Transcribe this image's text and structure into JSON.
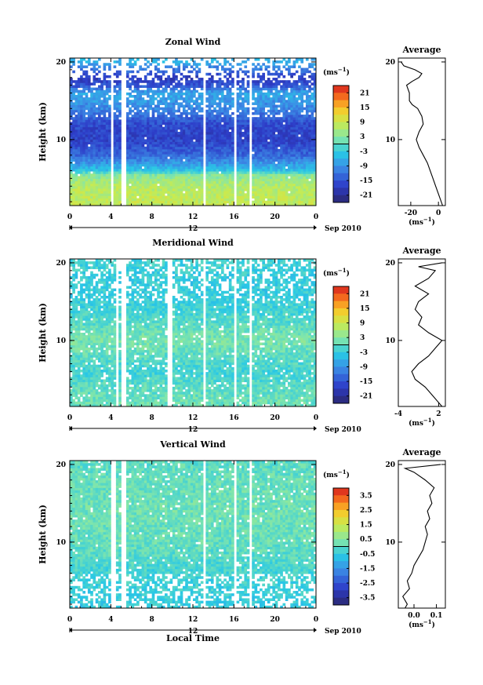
{
  "chart_data": [
    {
      "type": "heatmap",
      "title": "Zonal Wind",
      "ylabel": "Height (km)",
      "xlabel": "",
      "xlim": [
        0,
        24
      ],
      "ylim": [
        1.5,
        20.5
      ],
      "x_ticks": [
        "0",
        "4",
        "8",
        "12",
        "16",
        "20",
        "0"
      ],
      "y_ticks": [
        "10",
        "20"
      ],
      "date_marker": "12",
      "date_label": "Sep 2010",
      "colorbar": {
        "unit_base": "(ms",
        "unit_exp": "−1",
        "unit_close": ")",
        "ticks": [
          "21",
          "15",
          "9",
          "3",
          "-3",
          "-9",
          "-15",
          "-21"
        ],
        "range": [
          -24,
          24
        ]
      },
      "data_gaps_hours": [
        [
          4.0,
          4.3
        ],
        [
          4.9,
          5.5
        ],
        [
          12.9,
          13.3
        ],
        [
          16.0,
          16.3
        ],
        [
          17.4,
          17.7
        ]
      ],
      "profile_by_height": [
        {
          "h": 2,
          "v": 8
        },
        {
          "h": 4,
          "v": 7
        },
        {
          "h": 5.5,
          "v": 3
        },
        {
          "h": 6,
          "v": -4
        },
        {
          "h": 8,
          "v": -13
        },
        {
          "h": 10,
          "v": -17
        },
        {
          "h": 12,
          "v": -16
        },
        {
          "h": 14,
          "v": -10
        },
        {
          "h": 16,
          "v": -7
        },
        {
          "h": 17,
          "v": -15
        },
        {
          "h": 18,
          "v": -18
        },
        {
          "h": 19,
          "v": -12
        },
        {
          "h": 20,
          "v": -6
        }
      ],
      "average": {
        "title": "Average",
        "xlim": [
          -29,
          5
        ],
        "x_ticks": [
          "-20",
          "0"
        ],
        "xlabel_base": "(ms",
        "xlabel_exp": "−1",
        "xlabel_close": ")",
        "y_ticks": [
          "10",
          "20"
        ],
        "height": [
          1.5,
          2,
          3,
          4,
          5,
          6,
          7,
          8,
          9,
          10,
          11,
          12,
          13,
          14,
          14.5,
          15,
          16,
          17,
          17.5,
          18,
          18.5,
          19,
          19.5,
          20
        ],
        "value": [
          3,
          2,
          0,
          -2,
          -4,
          -6,
          -8,
          -11,
          -14,
          -16,
          -14,
          -11,
          -12,
          -15,
          -19,
          -21,
          -21,
          -23,
          -19,
          -14,
          -12,
          -17,
          -25,
          -27
        ]
      }
    },
    {
      "type": "heatmap",
      "title": "Meridional Wind",
      "ylabel": "Height (km)",
      "xlabel": "",
      "xlim": [
        0,
        24
      ],
      "ylim": [
        1.5,
        20.5
      ],
      "x_ticks": [
        "0",
        "4",
        "8",
        "12",
        "16",
        "20",
        "0"
      ],
      "y_ticks": [
        "10",
        "20"
      ],
      "date_marker": "12",
      "date_label": "Sep 2010",
      "colorbar": {
        "unit_base": "(ms",
        "unit_exp": "−1",
        "unit_close": ")",
        "ticks": [
          "21",
          "15",
          "9",
          "3",
          "-3",
          "-9",
          "-15",
          "-21"
        ],
        "range": [
          -24,
          24
        ]
      },
      "data_gaps_hours": [
        [
          4.4,
          4.7
        ],
        [
          5.1,
          5.4
        ],
        [
          9.6,
          9.9
        ],
        [
          12.9,
          13.3
        ],
        [
          16.0,
          16.3
        ],
        [
          17.4,
          17.7
        ]
      ],
      "profile_by_height": [
        {
          "h": 2,
          "v": 1
        },
        {
          "h": 4,
          "v": 0
        },
        {
          "h": 6,
          "v": -2
        },
        {
          "h": 8,
          "v": 0
        },
        {
          "h": 10,
          "v": 2
        },
        {
          "h": 12,
          "v": 0
        },
        {
          "h": 14,
          "v": -2
        },
        {
          "h": 16,
          "v": -3
        },
        {
          "h": 18,
          "v": -3
        },
        {
          "h": 20,
          "v": -2
        }
      ],
      "average": {
        "title": "Average",
        "xlim": [
          -4,
          3
        ],
        "x_ticks": [
          "-4",
          "2"
        ],
        "xlabel_base": "(ms",
        "xlabel_exp": "−1",
        "xlabel_close": ")",
        "y_ticks": [
          "10",
          "20"
        ],
        "height": [
          1.5,
          2,
          3,
          4,
          5,
          6,
          7,
          8,
          9,
          10,
          11,
          12,
          13,
          14,
          15,
          16,
          17,
          18,
          19,
          19.5,
          20
        ],
        "value": [
          2.5,
          2,
          1,
          0,
          -1.5,
          -2,
          -1,
          0.5,
          1.5,
          2.5,
          0.5,
          -1,
          -0.5,
          -1.5,
          -1,
          0.5,
          -1.5,
          0.5,
          1.5,
          -1,
          2.5
        ]
      }
    },
    {
      "type": "heatmap",
      "title": "Vertical Wind",
      "ylabel": "Height (km)",
      "xlabel": "Local Time",
      "xlim": [
        0,
        24
      ],
      "ylim": [
        1.5,
        20.5
      ],
      "x_ticks": [
        "0",
        "4",
        "8",
        "12",
        "16",
        "20",
        "0"
      ],
      "y_ticks": [
        "10",
        "20"
      ],
      "date_marker": "12",
      "date_label": "Sep 2010",
      "colorbar": {
        "unit_base": "(ms",
        "unit_exp": "−1",
        "unit_close": ")",
        "ticks": [
          "3.5",
          "2.5",
          "1.5",
          "0.5",
          "-0.5",
          "-1.5",
          "-2.5",
          "-3.5"
        ],
        "range": [
          -4,
          4
        ]
      },
      "data_gaps_hours": [
        [
          4.1,
          4.4
        ],
        [
          5.0,
          5.5
        ],
        [
          12.9,
          13.3
        ],
        [
          16.0,
          16.3
        ],
        [
          17.4,
          17.7
        ]
      ],
      "profile_by_height": [
        {
          "h": 2,
          "v": -0.5
        },
        {
          "h": 6,
          "v": -0.3
        },
        {
          "h": 10,
          "v": 0.1
        },
        {
          "h": 14,
          "v": 0.2
        },
        {
          "h": 18,
          "v": 0.1
        },
        {
          "h": 20,
          "v": 0.0
        }
      ],
      "average": {
        "title": "Average",
        "xlim": [
          -0.07,
          0.14
        ],
        "x_ticks": [
          "0.0",
          "0.1"
        ],
        "xlabel_base": "(ms",
        "xlabel_exp": "−1",
        "xlabel_close": ")",
        "y_ticks": [
          "10",
          "20"
        ],
        "height": [
          1.5,
          2,
          3,
          4,
          5,
          6,
          7,
          8,
          9,
          10,
          11,
          12,
          13,
          14,
          15,
          16,
          17,
          18,
          19,
          19.5,
          20
        ],
        "value": [
          -0.04,
          -0.03,
          -0.05,
          -0.02,
          -0.03,
          -0.01,
          0.0,
          0.02,
          0.04,
          0.05,
          0.06,
          0.05,
          0.07,
          0.06,
          0.08,
          0.07,
          0.09,
          0.05,
          0.0,
          -0.04,
          0.12
        ]
      }
    }
  ]
}
